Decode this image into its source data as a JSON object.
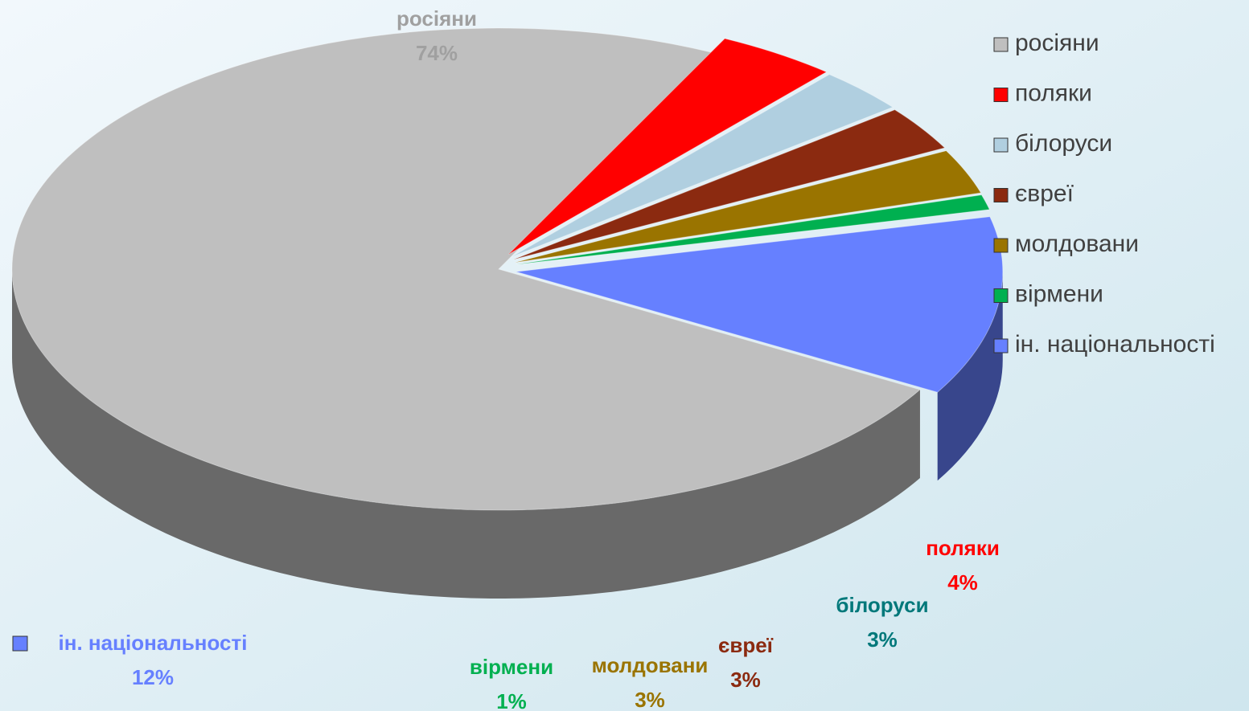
{
  "chart_data": {
    "type": "pie",
    "categories": [
      "росіяни",
      "поляки",
      "білоруси",
      "євреї",
      "молдовани",
      "вірмени",
      "ін. національності"
    ],
    "values": [
      74,
      4,
      3,
      3,
      3,
      1,
      12
    ],
    "value_labels": [
      "74%",
      "4%",
      "3%",
      "3%",
      "3%",
      "1%",
      "12%"
    ],
    "colors": [
      "#bfbfbf",
      "#ff0000",
      "#b0cfe0",
      "#8b2a10",
      "#9a7400",
      "#00b050",
      "#6680ff"
    ],
    "label_colors": [
      "#a0a0a0",
      "#ff0000",
      "#00787a",
      "#8b2a10",
      "#9a7400",
      "#00b050",
      "#6680ff"
    ],
    "legend": "right"
  }
}
